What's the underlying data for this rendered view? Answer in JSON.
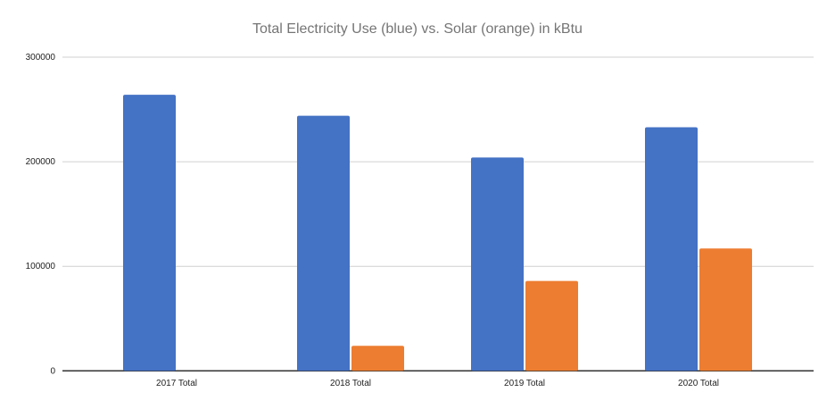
{
  "chart_data": {
    "type": "bar",
    "title": "Total Electricity Use (blue) vs. Solar (orange) in kBtu",
    "xlabel": "",
    "ylabel": "",
    "categories": [
      "2017 Total",
      "2018 Total",
      "2019 Total",
      "2020 Total"
    ],
    "series": [
      {
        "name": "Total Electricity Use",
        "color": "#4472C4",
        "values": [
          264000,
          244000,
          204000,
          233000
        ]
      },
      {
        "name": "Solar",
        "color": "#ED7D31",
        "values": [
          0,
          24000,
          86000,
          117000
        ]
      }
    ],
    "ylim": [
      0,
      300000
    ],
    "yticks": [
      "0",
      "100000",
      "200000",
      "300000"
    ],
    "grid": true,
    "legend": "none"
  }
}
